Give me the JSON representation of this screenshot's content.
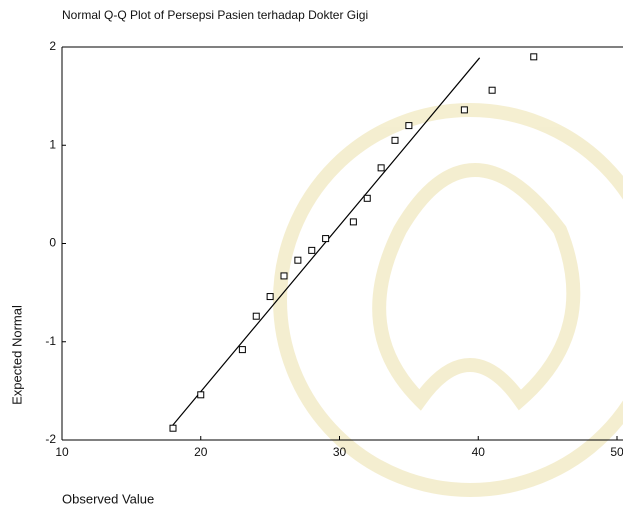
{
  "chart_data": {
    "type": "scatter",
    "title": "Normal Q-Q Plot of Persepsi Pasien terhadap Dokter Gigi",
    "x_label": "Observed Value",
    "y_label": "Expected Normal",
    "x": [
      18,
      20,
      23,
      24,
      25,
      26,
      27,
      28,
      29,
      31,
      32,
      33,
      34,
      35,
      39,
      41,
      44
    ],
    "values": [
      -1.88,
      -1.54,
      -1.08,
      -0.74,
      -0.54,
      -0.33,
      -0.17,
      -0.07,
      0.05,
      0.22,
      0.46,
      0.77,
      1.05,
      1.2,
      1.36,
      1.56,
      1.9
    ],
    "reference_line": {
      "x": [
        17.8,
        40.1
      ],
      "values": [
        -1.88,
        1.89
      ]
    },
    "xlim": [
      10,
      50
    ],
    "xticks": [
      10,
      20,
      30,
      40,
      50
    ],
    "ylim": [
      -2,
      2
    ],
    "yticks": [
      -2,
      -1,
      0,
      1,
      2
    ],
    "color": "#000000"
  }
}
